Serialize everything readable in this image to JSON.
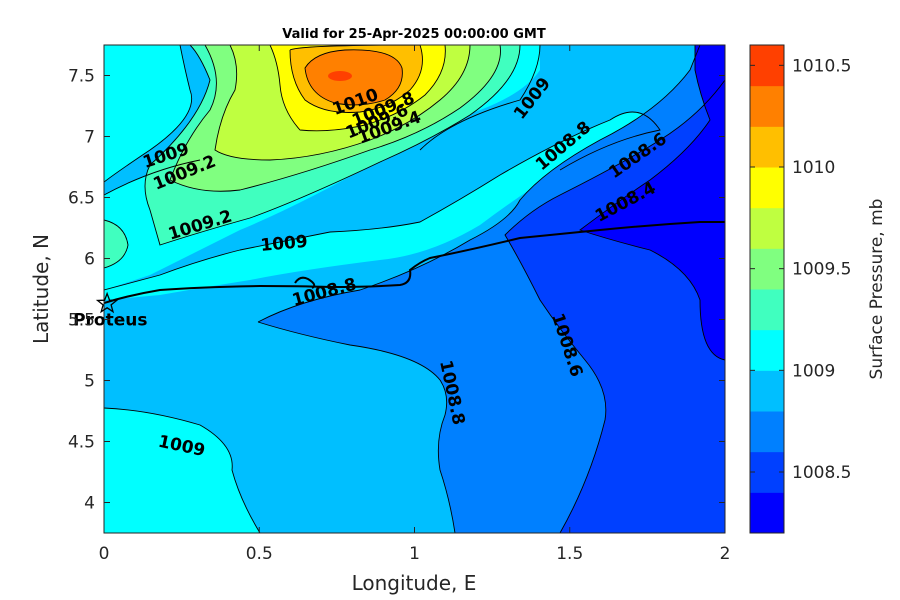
{
  "chart_data": {
    "type": "contour",
    "title": "Valid for 25-Apr-2025 00:00:00 GMT",
    "xlabel": "Longitude, E",
    "ylabel": "Latitude, N",
    "xlim": [
      0,
      2
    ],
    "ylim": [
      3.75,
      7.75
    ],
    "xticks": [
      0,
      0.5,
      1,
      1.5,
      2
    ],
    "xtick_labels": [
      "0",
      "0.5",
      "1",
      "1.5",
      "2"
    ],
    "yticks": [
      4,
      4.5,
      5,
      5.5,
      6,
      6.5,
      7,
      7.5
    ],
    "ytick_labels": [
      "4",
      "4.5",
      "5",
      "5.5",
      "6",
      "6.5",
      "7",
      "7.5"
    ],
    "colorbar": {
      "label": "Surface Pressure, mb",
      "range": [
        1008.2,
        1010.6
      ],
      "ticks": [
        1008.5,
        1009,
        1009.5,
        1010,
        1010.5
      ],
      "tick_labels": [
        "1008.5",
        "1009",
        "1009.5",
        "1010",
        "1010.5"
      ],
      "colormap": "jet"
    },
    "contour_labels": [
      {
        "text": "1010",
        "lon": 0.81,
        "lat": 7.28
      },
      {
        "text": "1009.8",
        "lon": 0.9,
        "lat": 7.22
      },
      {
        "text": "1009.6",
        "lon": 0.88,
        "lat": 7.12
      },
      {
        "text": "1009.4",
        "lon": 0.92,
        "lat": 7.07
      },
      {
        "text": "1009",
        "lon": 0.2,
        "lat": 6.84
      },
      {
        "text": "1009.2",
        "lon": 0.26,
        "lat": 6.7
      },
      {
        "text": "1009.2",
        "lon": 0.31,
        "lat": 6.27
      },
      {
        "text": "1009",
        "lon": 0.58,
        "lat": 6.12
      },
      {
        "text": "1009",
        "lon": 1.38,
        "lat": 7.31
      },
      {
        "text": "1008.8",
        "lon": 1.48,
        "lat": 6.92
      },
      {
        "text": "1008.6",
        "lon": 1.72,
        "lat": 6.84
      },
      {
        "text": "1008.4",
        "lon": 1.68,
        "lat": 6.46
      },
      {
        "text": "1008.8",
        "lon": 0.71,
        "lat": 5.72
      },
      {
        "text": "1008.6",
        "lon": 1.49,
        "lat": 5.29
      },
      {
        "text": "1008.8",
        "lon": 1.12,
        "lat": 4.9
      },
      {
        "text": "1009",
        "lon": 0.25,
        "lat": 4.46
      }
    ],
    "sites": [
      {
        "name": "Proteus",
        "lon": 0.01,
        "lat": 5.63,
        "marker": "star"
      }
    ]
  }
}
